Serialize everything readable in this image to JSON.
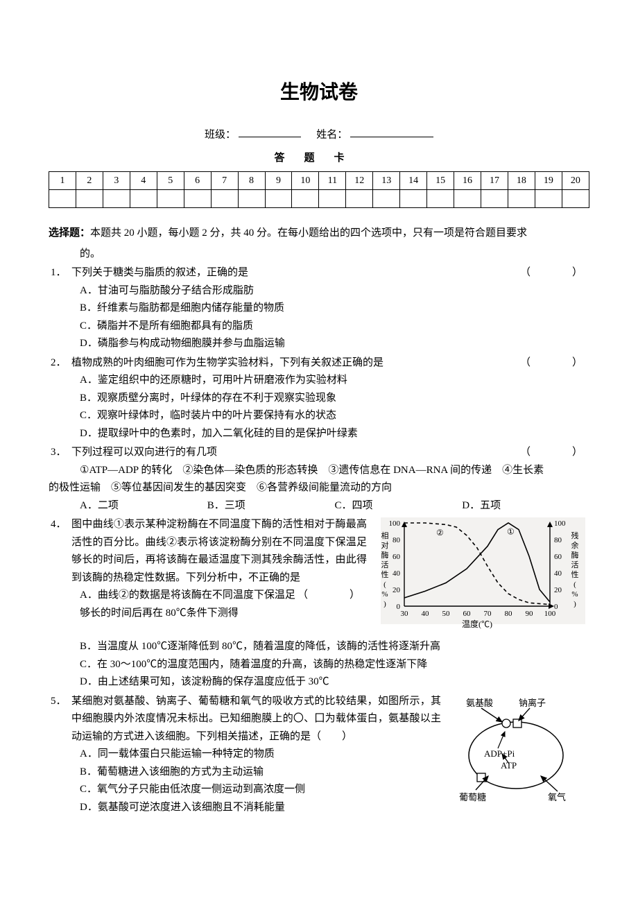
{
  "title": "生物试卷",
  "header": {
    "class_label": "班级：",
    "name_label": "姓名：",
    "answer_card_label": "答题卡"
  },
  "answer_card_numbers": [
    "1",
    "2",
    "3",
    "4",
    "5",
    "6",
    "7",
    "8",
    "9",
    "10",
    "11",
    "12",
    "13",
    "14",
    "15",
    "16",
    "17",
    "18",
    "19",
    "20"
  ],
  "section": {
    "label": "选择题：",
    "desc_line1": "本题共 20 小题，每小题 2 分，共 40 分。在每小题给出的四个选项中，只有一项是符合题目要求",
    "desc_line2": "的。"
  },
  "q1": {
    "num": "1．",
    "stem": "下列关于糖类与脂质的叙述，正确的是",
    "paren": "（　　）",
    "A": "A．甘油可与脂肪酸分子结合形成脂肪",
    "B": "B．纤维素与脂肪都是细胞内储存能量的物质",
    "C": "C．磷脂并不是所有细胞都具有的脂质",
    "D": "D．磷脂参与构成动物细胞膜并参与血脂运输"
  },
  "q2": {
    "num": "2．",
    "stem": "植物成熟的叶肉细胞可作为生物学实验材料，下列有关叙述正确的是",
    "paren": "（　　）",
    "A": "A．鉴定组织中的还原糖时，可用叶片研磨液作为实验材料",
    "B": "B．观察质壁分离时，叶绿体的存在不利于观察实验现象",
    "C": "C．观察叶绿体时，临时装片中的叶片要保持有水的状态",
    "D": "D．提取绿叶中的色素时，加入二氧化硅的目的是保护叶绿素"
  },
  "q3": {
    "num": "3．",
    "stem": "下列过程可以双向进行的有几项",
    "paren": "（　　）",
    "items_line1": "①ATP—ADP 的转化　②染色体—染色质的形态转换　③遗传信息在 DNA—RNA 间的传递　④生长素",
    "items_line2": "的极性运输　⑤等位基因间发生的基因突变　⑥各营养级间能量流动的方向",
    "A": "A．二项",
    "B": "B．三项",
    "C": "C．四项",
    "D": "D．五项"
  },
  "q4": {
    "num": "4．",
    "stem_part1": "图中曲线①表示某种淀粉酶在不同温度下酶的活性相对于酶最高活性的百分比。曲线②表示将该淀粉酶分别在不同温度下保温足够长的时间后，再将该酶在最适温度下测其残余酶活性，由此得到该酶的热稳定性数据。下列分析中，不正确的是",
    "paren": "（　　）",
    "A": "A．曲线②的数据是将该酶在不同温度下保温足够长的时间后再在 80℃条件下测得",
    "B": "B．当温度从 100℃逐渐降低到 80℃，随着温度的降低，该酶的活性将逐渐升高",
    "C": "C．在 30～100℃的温度范围内，随着温度的升高，该酶的热稳定性逐渐下降",
    "D": "D．由上述结果可知，该淀粉酶的保存温度应低于 30℃",
    "chart": {
      "type": "line",
      "left_axis_label": "相对酶活性(%)",
      "right_axis_label": "残余酶活性(%)",
      "x_axis_label": "温度(℃)",
      "x_ticks": [
        "30",
        "40",
        "50",
        "60",
        "70",
        "80",
        "90",
        "100"
      ],
      "y_ticks_left": [
        "0",
        "20",
        "40",
        "60",
        "80",
        "100"
      ],
      "y_ticks_right": [
        "0",
        "20",
        "40",
        "60",
        "80",
        "100"
      ],
      "series1": {
        "label": "①",
        "style": "solid",
        "color": "#000000",
        "points": [
          [
            30,
            10
          ],
          [
            40,
            18
          ],
          [
            50,
            28
          ],
          [
            60,
            45
          ],
          [
            70,
            72
          ],
          [
            75,
            92
          ],
          [
            80,
            100
          ],
          [
            85,
            92
          ],
          [
            90,
            60
          ],
          [
            95,
            20
          ],
          [
            100,
            5
          ]
        ]
      },
      "series2": {
        "label": "②",
        "style": "dashed",
        "color": "#000000",
        "points": [
          [
            30,
            100
          ],
          [
            40,
            100
          ],
          [
            50,
            98
          ],
          [
            55,
            95
          ],
          [
            60,
            85
          ],
          [
            65,
            70
          ],
          [
            70,
            48
          ],
          [
            75,
            28
          ],
          [
            80,
            15
          ],
          [
            85,
            8
          ],
          [
            90,
            4
          ],
          [
            100,
            2
          ]
        ]
      },
      "bg": "#f3f2f0",
      "axis_color": "#000000"
    }
  },
  "q5": {
    "num": "5．",
    "stem": "某细胞对氨基酸、钠离子、葡萄糖和氧气的吸收方式的比较结果，如图所示，其中细胞膜内外浓度情况未标出。已知细胞膜上的〇、囗为载体蛋白，氨基酸以主动运输的方式进入该细胞。下列相关描述，正确的是（　　）",
    "A": "A．同一载体蛋白只能运输一种特定的物质",
    "B": "B．葡萄糖进入该细胞的方式为主动运输",
    "C": "C．氧气分子只能由低浓度一侧运动到高浓度一侧",
    "D": "D．氨基酸可逆浓度进入该细胞且不消耗能量",
    "diagram": {
      "labels": {
        "amino": "氨基酸",
        "na": "钠离子",
        "glucose": "葡萄糖",
        "o2": "氧气",
        "adp": "ADP+Pi",
        "atp": "ATP"
      },
      "colors": {
        "line": "#000000"
      }
    }
  }
}
